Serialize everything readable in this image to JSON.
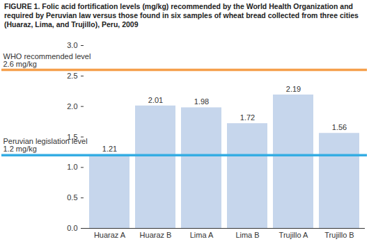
{
  "chart_data": {
    "type": "bar",
    "title": "FIGURE 1. Folic acid fortification levels (mg/kg) recommended by the World Health Organization and required by Peruvian law versus those found in six samples of wheat bread collected from three cities (Huaraz, Lima, and Trujillo), Peru, 2009",
    "categories": [
      "Huaraz A",
      "Huaraz B",
      "Lima A",
      "Lima B",
      "Trujillo A",
      "Trujillo B"
    ],
    "values": [
      1.21,
      2.01,
      1.98,
      1.72,
      2.19,
      1.56
    ],
    "color": "#c6d6ec",
    "ylim": [
      0,
      3
    ],
    "yticks": [
      0,
      0.5,
      1,
      1.5,
      2,
      2.5,
      3
    ],
    "grid": false,
    "data_labels": true,
    "annotations": [
      {
        "text": "WHO recommended level 2.6 mg/kg",
        "y": 2.6,
        "color": "#f5a04c"
      },
      {
        "text": "Peruvian legislation level 1.2 mg/kg",
        "y": 1.2,
        "color": "#35ade3"
      }
    ]
  }
}
